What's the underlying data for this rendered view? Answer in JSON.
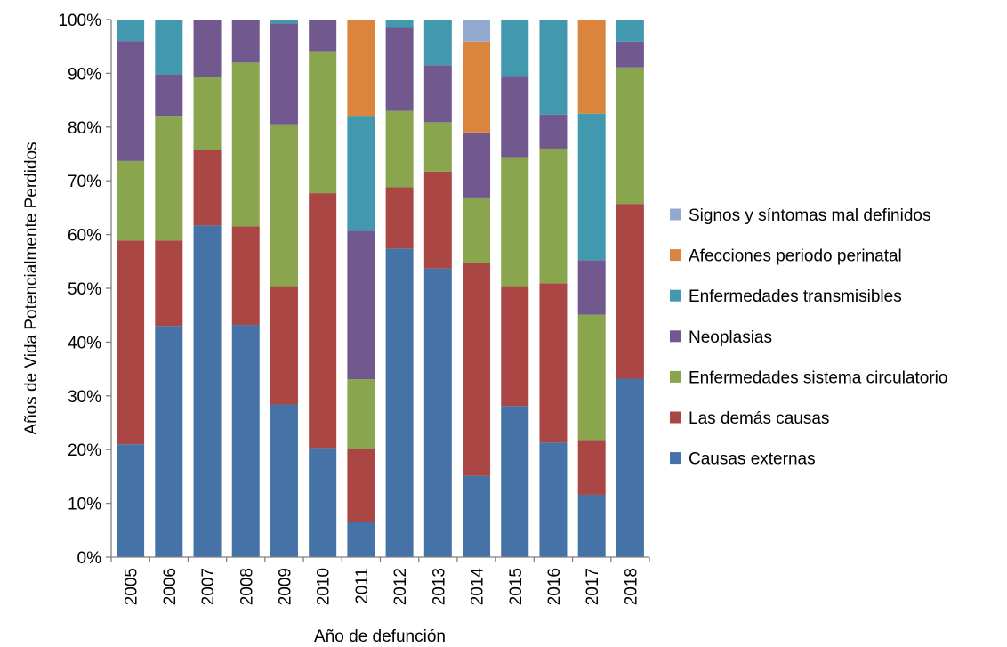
{
  "chart_data": {
    "type": "bar",
    "stacked": true,
    "normalized": true,
    "title": "",
    "xlabel": "Año de defunción",
    "ylabel": "Años de Vida Potencialmente Perdidos",
    "ylim": [
      0,
      100
    ],
    "yticks": [
      "0%",
      "10%",
      "20%",
      "30%",
      "40%",
      "50%",
      "60%",
      "70%",
      "80%",
      "90%",
      "100%"
    ],
    "grid": false,
    "legend_position": "right",
    "categories": [
      "2005",
      "2006",
      "2007",
      "2008",
      "2009",
      "2010",
      "2011",
      "2012",
      "2013",
      "2014",
      "2015",
      "2016",
      "2017",
      "2018"
    ],
    "series": [
      {
        "name": "Causas externas",
        "color": "#4572A7",
        "values": [
          21,
          43,
          61.7,
          43.2,
          28.4,
          20.3,
          6.5,
          57.4,
          53.7,
          15.1,
          28.1,
          21.3,
          11.6,
          33.2
        ]
      },
      {
        "name": "Las demás causas",
        "color": "#AA4643",
        "values": [
          37.9,
          15.9,
          14,
          18.3,
          22,
          47.4,
          13.7,
          11.4,
          18,
          39.6,
          22.3,
          29.6,
          10.2,
          32.5
        ]
      },
      {
        "name": "Enfermedades sistema circulatorio",
        "color": "#89A54E",
        "values": [
          14.8,
          23.2,
          13.6,
          30.5,
          30.1,
          26.4,
          12.9,
          14.2,
          9.2,
          12.2,
          24,
          25.1,
          23.3,
          25.4
        ]
      },
      {
        "name": "Neoplasias",
        "color": "#71588F",
        "values": [
          22.3,
          7.7,
          10.6,
          8,
          18.8,
          6,
          27.6,
          15.6,
          10.6,
          12.1,
          15.1,
          6.3,
          10.1,
          4.8
        ]
      },
      {
        "name": "Enfermedades transmisibles",
        "color": "#4198AF",
        "values": [
          4,
          10.2,
          0,
          0,
          0.7,
          0,
          21.4,
          1.4,
          8.5,
          0,
          10.5,
          17.7,
          27.3,
          4.1
        ]
      },
      {
        "name": "Afecciones periodo perinatal",
        "color": "#DB843D",
        "values": [
          0,
          0,
          0,
          0,
          0,
          0,
          17.9,
          0,
          0,
          16.9,
          0,
          0,
          17.5,
          0
        ]
      },
      {
        "name": "Signos y síntomas mal definidos",
        "color": "#93A9CF",
        "values": [
          0,
          0,
          0,
          0,
          0,
          0,
          0,
          0,
          0,
          4.1,
          0,
          0,
          0,
          0
        ]
      }
    ]
  }
}
